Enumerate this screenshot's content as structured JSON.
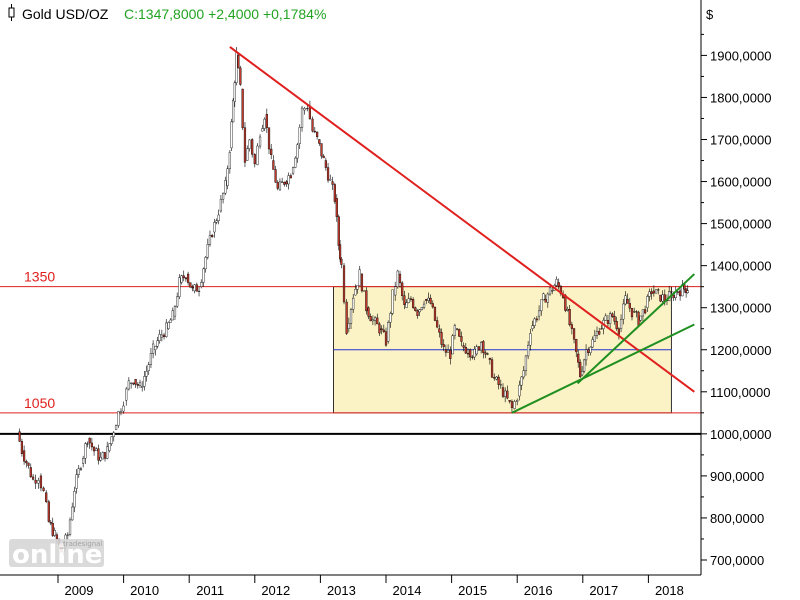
{
  "header": {
    "instrument": "Gold USD/OZ",
    "quote": "C:1347,8000 +2,4000 +0,1784%",
    "quote_color": "#22a322"
  },
  "logo": {
    "text": "online",
    "small_text": "tradesignal"
  },
  "chart_data": {
    "type": "line",
    "title": "Gold USD/OZ",
    "ylabel": "$",
    "xlabel": "",
    "ylim": [
      670,
      1960
    ],
    "xlim": [
      2008.38,
      2018.6
    ],
    "grid": false,
    "y_ticks": [
      700,
      800,
      900,
      1000,
      1100,
      1200,
      1300,
      1400,
      1500,
      1600,
      1700,
      1800,
      1900
    ],
    "y_tick_labels": [
      "700,0000",
      "800,0000",
      "900,0000",
      "1000,0000",
      "1100,0000",
      "1200,0000",
      "1300,0000",
      "1400,0000",
      "1500,0000",
      "1600,0000",
      "1700,0000",
      "1800,0000",
      "1900,0000"
    ],
    "x_ticks": [
      2009,
      2010,
      2011,
      2012,
      2013,
      2014,
      2015,
      2016,
      2017,
      2018
    ],
    "x_tick_labels": [
      "2009",
      "2010",
      "2011",
      "2012",
      "2013",
      "2014",
      "2015",
      "2016",
      "2017",
      "2018"
    ],
    "series": [
      {
        "name": "",
        "color": "#000000",
        "x": [
          2008.38,
          2008.45,
          2008.55,
          2008.62,
          2008.7,
          2008.78,
          2008.86,
          2008.95,
          2009.05,
          2009.15,
          2009.25,
          2009.35,
          2009.45,
          2009.55,
          2009.65,
          2009.75,
          2009.85,
          2009.92,
          2010.0,
          2010.08,
          2010.15,
          2010.25,
          2010.35,
          2010.45,
          2010.55,
          2010.65,
          2010.75,
          2010.85,
          2010.95,
          2011.05,
          2011.15,
          2011.25,
          2011.35,
          2011.45,
          2011.55,
          2011.62,
          2011.67,
          2011.72,
          2011.78,
          2011.85,
          2011.92,
          2012.0,
          2012.08,
          2012.15,
          2012.25,
          2012.35,
          2012.45,
          2012.55,
          2012.65,
          2012.72,
          2012.8,
          2012.88,
          2012.95,
          2013.05,
          2013.15,
          2013.22,
          2013.28,
          2013.32,
          2013.4,
          2013.5,
          2013.6,
          2013.7,
          2013.8,
          2013.9,
          2014.0,
          2014.1,
          2014.18,
          2014.28,
          2014.38,
          2014.48,
          2014.58,
          2014.68,
          2014.78,
          2014.88,
          2014.98,
          2015.05,
          2015.15,
          2015.25,
          2015.35,
          2015.45,
          2015.55,
          2015.65,
          2015.75,
          2015.85,
          2015.92,
          2016.0,
          2016.1,
          2016.2,
          2016.3,
          2016.4,
          2016.5,
          2016.6,
          2016.7,
          2016.8,
          2016.9,
          2016.96,
          2017.05,
          2017.15,
          2017.25,
          2017.35,
          2017.45,
          2017.55,
          2017.65,
          2017.75,
          2017.85,
          2017.95,
          2018.05,
          2018.15,
          2018.25,
          2018.35,
          2018.45,
          2018.55,
          2018.6
        ],
        "values": [
          1005,
          960,
          920,
          890,
          900,
          860,
          790,
          760,
          720,
          760,
          870,
          930,
          990,
          960,
          940,
          960,
          1010,
          1050,
          1080,
          1120,
          1130,
          1110,
          1150,
          1200,
          1230,
          1250,
          1280,
          1360,
          1380,
          1340,
          1350,
          1420,
          1480,
          1530,
          1590,
          1680,
          1790,
          1900,
          1820,
          1650,
          1700,
          1640,
          1720,
          1760,
          1650,
          1580,
          1600,
          1620,
          1690,
          1770,
          1780,
          1720,
          1700,
          1650,
          1600,
          1560,
          1450,
          1400,
          1250,
          1330,
          1380,
          1300,
          1270,
          1250,
          1220,
          1330,
          1380,
          1300,
          1320,
          1290,
          1320,
          1310,
          1250,
          1200,
          1190,
          1250,
          1210,
          1200,
          1190,
          1220,
          1180,
          1130,
          1110,
          1080,
          1060,
          1090,
          1150,
          1250,
          1280,
          1320,
          1340,
          1360,
          1330,
          1260,
          1190,
          1140,
          1200,
          1220,
          1250,
          1270,
          1280,
          1250,
          1320,
          1290,
          1270,
          1300,
          1340,
          1330,
          1320,
          1330,
          1340,
          1345,
          1347.8
        ]
      }
    ],
    "horizontal_lines": [
      {
        "value": 1350,
        "label": "1350",
        "color": "#e0201e"
      },
      {
        "value": 1050,
        "label": "1050",
        "color": "#e0201e"
      },
      {
        "value": 1200,
        "label": "",
        "color": "#2233cc"
      },
      {
        "value": 1000,
        "label": "",
        "color": "#000000"
      }
    ],
    "range_box": {
      "x_start": 2013.2,
      "x_end": 2018.35,
      "y_low": 1050,
      "y_high": 1350,
      "fill": "#fbf2c6"
    },
    "trend_lines": [
      {
        "color": "#e0201e",
        "x1": 2011.62,
        "y1": 1920,
        "x2": 2018.7,
        "y2": 1100
      },
      {
        "color": "#1f8f1f",
        "x1": 2015.92,
        "y1": 1050,
        "x2": 2018.7,
        "y2": 1260
      },
      {
        "color": "#1f8f1f",
        "x1": 2016.92,
        "y1": 1120,
        "x2": 2018.7,
        "y2": 1380
      }
    ]
  }
}
